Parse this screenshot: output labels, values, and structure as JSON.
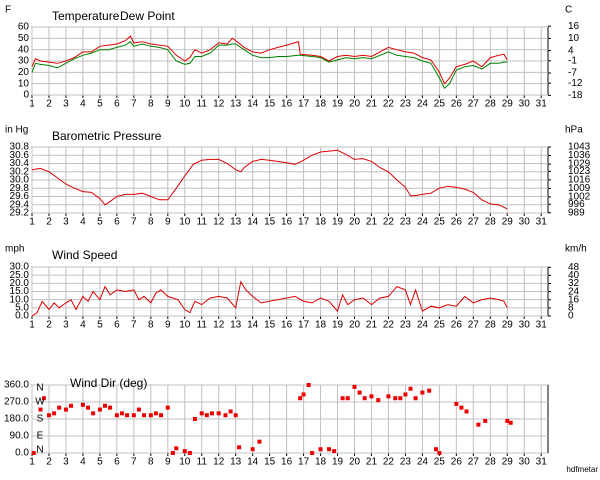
{
  "chart_data": [
    {
      "type": "line",
      "y_label": "F",
      "y2_label": "C",
      "x": [
        1.0,
        1.2,
        1.5,
        2,
        2.5,
        3,
        3.5,
        4,
        4.5,
        5,
        5.5,
        6,
        6.5,
        6.8,
        7,
        7.5,
        8,
        8.5,
        9,
        9.5,
        10,
        10.3,
        10.6,
        11,
        11.5,
        12,
        12.5,
        12.8,
        13,
        13.5,
        14,
        14.5,
        15,
        15.5,
        16,
        16.7,
        16.8,
        17.5,
        18,
        18.5,
        19,
        19.5,
        20,
        20.5,
        21,
        21.5,
        22,
        22.5,
        23,
        23.5,
        24,
        24.5,
        25,
        25.3,
        25.6,
        26,
        26.5,
        27,
        27.5,
        28,
        28.5,
        28.8,
        29
      ],
      "series": [
        {
          "name": "Temperature",
          "color": "#dd0000",
          "values": [
            25,
            32,
            30,
            29,
            28,
            30,
            33,
            38,
            38,
            43,
            44,
            45,
            48,
            52,
            46,
            47,
            45,
            44,
            43,
            35,
            30,
            33,
            40,
            37,
            40,
            46,
            45,
            50,
            48,
            42,
            38,
            37,
            40,
            42,
            44,
            47,
            36,
            35,
            34,
            30,
            34,
            35,
            34,
            35,
            34,
            38,
            42,
            40,
            38,
            37,
            33,
            31,
            20,
            10,
            15,
            25,
            27,
            30,
            25,
            33,
            35,
            36,
            31
          ]
        },
        {
          "name": "Dew Point",
          "color": "#008000",
          "values": [
            20,
            28,
            27,
            26,
            24,
            28,
            32,
            35,
            37,
            40,
            40,
            42,
            44,
            47,
            43,
            45,
            43,
            42,
            40,
            30,
            27,
            28,
            34,
            34,
            37,
            44,
            44,
            45,
            45,
            40,
            35,
            33,
            33,
            34,
            34,
            35,
            35,
            34,
            33,
            29,
            31,
            33,
            32,
            33,
            32,
            35,
            38,
            35,
            34,
            33,
            30,
            28,
            15,
            6,
            10,
            22,
            25,
            26,
            23,
            28,
            28,
            29,
            29
          ]
        }
      ],
      "xlim": [
        1,
        31.4
      ],
      "xticks": [
        1,
        2,
        3,
        4,
        5,
        6,
        7,
        8,
        9,
        10,
        11,
        12,
        13,
        14,
        15,
        16,
        17,
        18,
        19,
        20,
        21,
        22,
        23,
        24,
        25,
        26,
        27,
        28,
        29,
        30,
        31
      ],
      "ylim": [
        0,
        60
      ],
      "yticks": [
        60,
        50,
        40,
        30,
        20,
        10,
        0
      ],
      "y2lim": [
        -17.8,
        15.6
      ],
      "y2ticks": [
        16,
        10,
        4,
        -1,
        -7,
        -12,
        -18
      ],
      "grid": true
    },
    {
      "type": "line",
      "title": "Barometric Pressure",
      "y_label": "in Hg",
      "y2_label": "hPa",
      "color": "#dd0000",
      "x": [
        1,
        1.5,
        2,
        2.5,
        3,
        3.5,
        4,
        4.5,
        5,
        5.3,
        5.5,
        6,
        6.5,
        7,
        7.5,
        8,
        8.5,
        9,
        9.5,
        10,
        10.5,
        11,
        11.5,
        12,
        12.5,
        13,
        13.3,
        13.5,
        14,
        14.5,
        15,
        16,
        16.5,
        17,
        17.5,
        18,
        18.5,
        19,
        19.5,
        20,
        20.5,
        21,
        21.5,
        22,
        22.5,
        23,
        23.3,
        23.5,
        24,
        24.5,
        25,
        25.5,
        26,
        26.5,
        27,
        27.5,
        28,
        28.5,
        29
      ],
      "values": [
        30.25,
        30.28,
        30.2,
        30.05,
        29.9,
        29.8,
        29.72,
        29.7,
        29.55,
        29.4,
        29.45,
        29.6,
        29.65,
        29.65,
        29.68,
        29.6,
        29.52,
        29.52,
        29.8,
        30.1,
        30.38,
        30.48,
        30.5,
        30.5,
        30.4,
        30.25,
        30.2,
        30.3,
        30.45,
        30.5,
        30.48,
        30.42,
        30.38,
        30.48,
        30.6,
        30.68,
        30.7,
        30.72,
        30.62,
        30.5,
        30.52,
        30.45,
        30.3,
        30.2,
        30.0,
        29.82,
        29.62,
        29.62,
        29.65,
        29.68,
        29.8,
        29.85,
        29.82,
        29.78,
        29.7,
        29.52,
        29.42,
        29.4,
        29.3
      ],
      "xlim": [
        1,
        31.4
      ],
      "xticks": [
        1,
        2,
        3,
        4,
        5,
        6,
        7,
        8,
        9,
        10,
        11,
        12,
        13,
        14,
        15,
        16,
        17,
        18,
        19,
        20,
        21,
        22,
        23,
        24,
        25,
        26,
        27,
        28,
        29,
        30,
        31
      ],
      "ylim": [
        29.2,
        30.8
      ],
      "yticks": [
        30.8,
        30.6,
        30.4,
        30.2,
        {
          "value": 30,
          "label": "30.0"
        },
        29.8,
        29.6,
        29.4,
        29.2
      ],
      "y2lim": [
        988.8,
        1043
      ],
      "y2ticks": [
        1043,
        1036,
        1029,
        1023,
        1016,
        1009,
        1002,
        996,
        989
      ],
      "grid": true
    },
    {
      "type": "line",
      "title": "Wind Speed",
      "y_label": "mph",
      "y2_label": "km/h",
      "color": "#dd0000",
      "x": [
        1,
        1.3,
        1.6,
        2,
        2.3,
        2.6,
        3,
        3.3,
        3.6,
        4,
        4.3,
        4.6,
        5,
        5.3,
        5.6,
        6,
        6.5,
        7,
        7.3,
        7.6,
        8,
        8.3,
        8.6,
        9,
        9.3,
        9.6,
        10,
        10.3,
        10.6,
        11,
        11.5,
        12,
        12.5,
        13,
        13.3,
        13.6,
        14,
        14.5,
        16.5,
        17,
        17.5,
        18,
        18.5,
        19,
        19.3,
        19.6,
        20,
        20.5,
        21,
        21.5,
        22,
        22.5,
        23,
        23.3,
        23.6,
        24,
        24.5,
        25,
        25.5,
        26,
        26.5,
        27,
        27.5,
        28,
        28.5,
        28.8,
        29
      ],
      "values": [
        0,
        2,
        9,
        4,
        8,
        5,
        8,
        10,
        4,
        12,
        9,
        15,
        10,
        18,
        13,
        16,
        15,
        16,
        10,
        12,
        8,
        14,
        16,
        12,
        11,
        10,
        4,
        2,
        9,
        7,
        11,
        12,
        11,
        5,
        21,
        16,
        12,
        8,
        12,
        9,
        8,
        11,
        9,
        3,
        13,
        7,
        10,
        11,
        7,
        11,
        12,
        18,
        16,
        7,
        16,
        3,
        6,
        5,
        7,
        6,
        12,
        8,
        10,
        11,
        10,
        9,
        5
      ],
      "xlim": [
        1,
        31.4
      ],
      "xticks": [
        1,
        2,
        3,
        4,
        5,
        6,
        7,
        8,
        9,
        10,
        11,
        12,
        13,
        14,
        15,
        16,
        17,
        18,
        19,
        20,
        21,
        22,
        23,
        24,
        25,
        26,
        27,
        28,
        29,
        30,
        31
      ],
      "ylim": [
        0,
        30
      ],
      "yticks": [
        {
          "value": 30,
          "label": "30.0"
        },
        {
          "value": 25,
          "label": "25.0"
        },
        {
          "value": 20,
          "label": "20.0"
        },
        {
          "value": 15,
          "label": "15.0"
        },
        {
          "value": 10,
          "label": "10.0"
        },
        {
          "value": 5,
          "label": "5.0"
        },
        {
          "value": 0,
          "label": "0.0"
        }
      ],
      "y2lim": [
        0,
        48.28
      ],
      "y2ticks": [
        48,
        40,
        32,
        24,
        16,
        8,
        0
      ],
      "grid": true
    },
    {
      "type": "scatter",
      "title": "Wind Dir (deg)",
      "color": "#ee0000",
      "compass": [
        "N",
        "W",
        "S",
        "E",
        "N"
      ],
      "x": [
        1.1,
        1.5,
        1.7,
        2,
        2.3,
        2.6,
        3,
        3.3,
        4,
        4.3,
        4.6,
        5,
        5.3,
        5.6,
        6,
        6.3,
        6.6,
        7,
        7.3,
        7.6,
        8,
        8.3,
        8.6,
        9,
        9.3,
        9.5,
        10,
        10.3,
        10.6,
        11,
        11.3,
        11.6,
        12,
        12.4,
        12.7,
        13,
        13.2,
        14,
        14.4,
        16.8,
        17,
        17.3,
        17.5,
        18,
        18.5,
        18.8,
        19.3,
        19.6,
        20,
        20.3,
        20.6,
        21,
        21.4,
        22,
        22.4,
        22.7,
        23,
        23.3,
        23.6,
        24,
        24.4,
        24.8,
        25,
        26,
        26.3,
        26.6,
        27.3,
        27.7,
        29,
        29.2
      ],
      "values": [
        0,
        230,
        290,
        200,
        210,
        240,
        230,
        250,
        255,
        240,
        210,
        230,
        250,
        240,
        200,
        210,
        200,
        200,
        230,
        200,
        200,
        210,
        200,
        240,
        0,
        25,
        10,
        0,
        180,
        210,
        200,
        210,
        210,
        200,
        220,
        200,
        30,
        20,
        60,
        290,
        310,
        360,
        0,
        20,
        20,
        10,
        290,
        290,
        350,
        320,
        290,
        300,
        280,
        300,
        290,
        290,
        310,
        340,
        290,
        320,
        330,
        20,
        0,
        260,
        240,
        220,
        150,
        170,
        170,
        160
      ],
      "xlim": [
        1,
        31.4
      ],
      "xticks": [
        1,
        2,
        3,
        4,
        5,
        6,
        7,
        8,
        9,
        10,
        11,
        12,
        13,
        14,
        15,
        16,
        17,
        18,
        19,
        20,
        21,
        22,
        23,
        24,
        25,
        26,
        27,
        28,
        29,
        30,
        31
      ],
      "ylim": [
        0,
        360
      ],
      "yticks": [
        {
          "value": 360,
          "label": "360.0"
        },
        {
          "value": 270,
          "label": "270.0"
        },
        {
          "value": 180,
          "label": "180.0"
        },
        {
          "value": 90,
          "label": "90.0"
        },
        {
          "value": 0,
          "label": "0.0"
        }
      ],
      "grid": true,
      "credit": "hdfmetar"
    }
  ]
}
